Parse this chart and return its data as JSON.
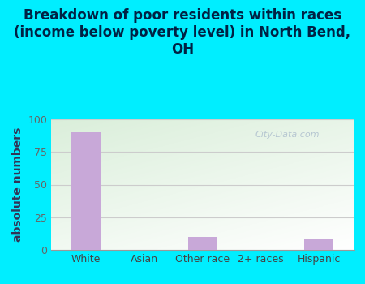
{
  "title": "Breakdown of poor residents within races\n(income below poverty level) in North Bend,\nOH",
  "categories": [
    "White",
    "Asian",
    "Other race",
    "2+ races",
    "Hispanic"
  ],
  "values": [
    90,
    0,
    10,
    0,
    9
  ],
  "bar_color": "#c8a8d8",
  "ylabel": "absolute numbers",
  "ylim": [
    0,
    100
  ],
  "yticks": [
    0,
    25,
    50,
    75,
    100
  ],
  "background_outer": "#00eeff",
  "grid_color": "#cccccc",
  "title_fontsize": 12,
  "ylabel_fontsize": 10,
  "tick_fontsize": 9,
  "watermark": "City-Data.com"
}
